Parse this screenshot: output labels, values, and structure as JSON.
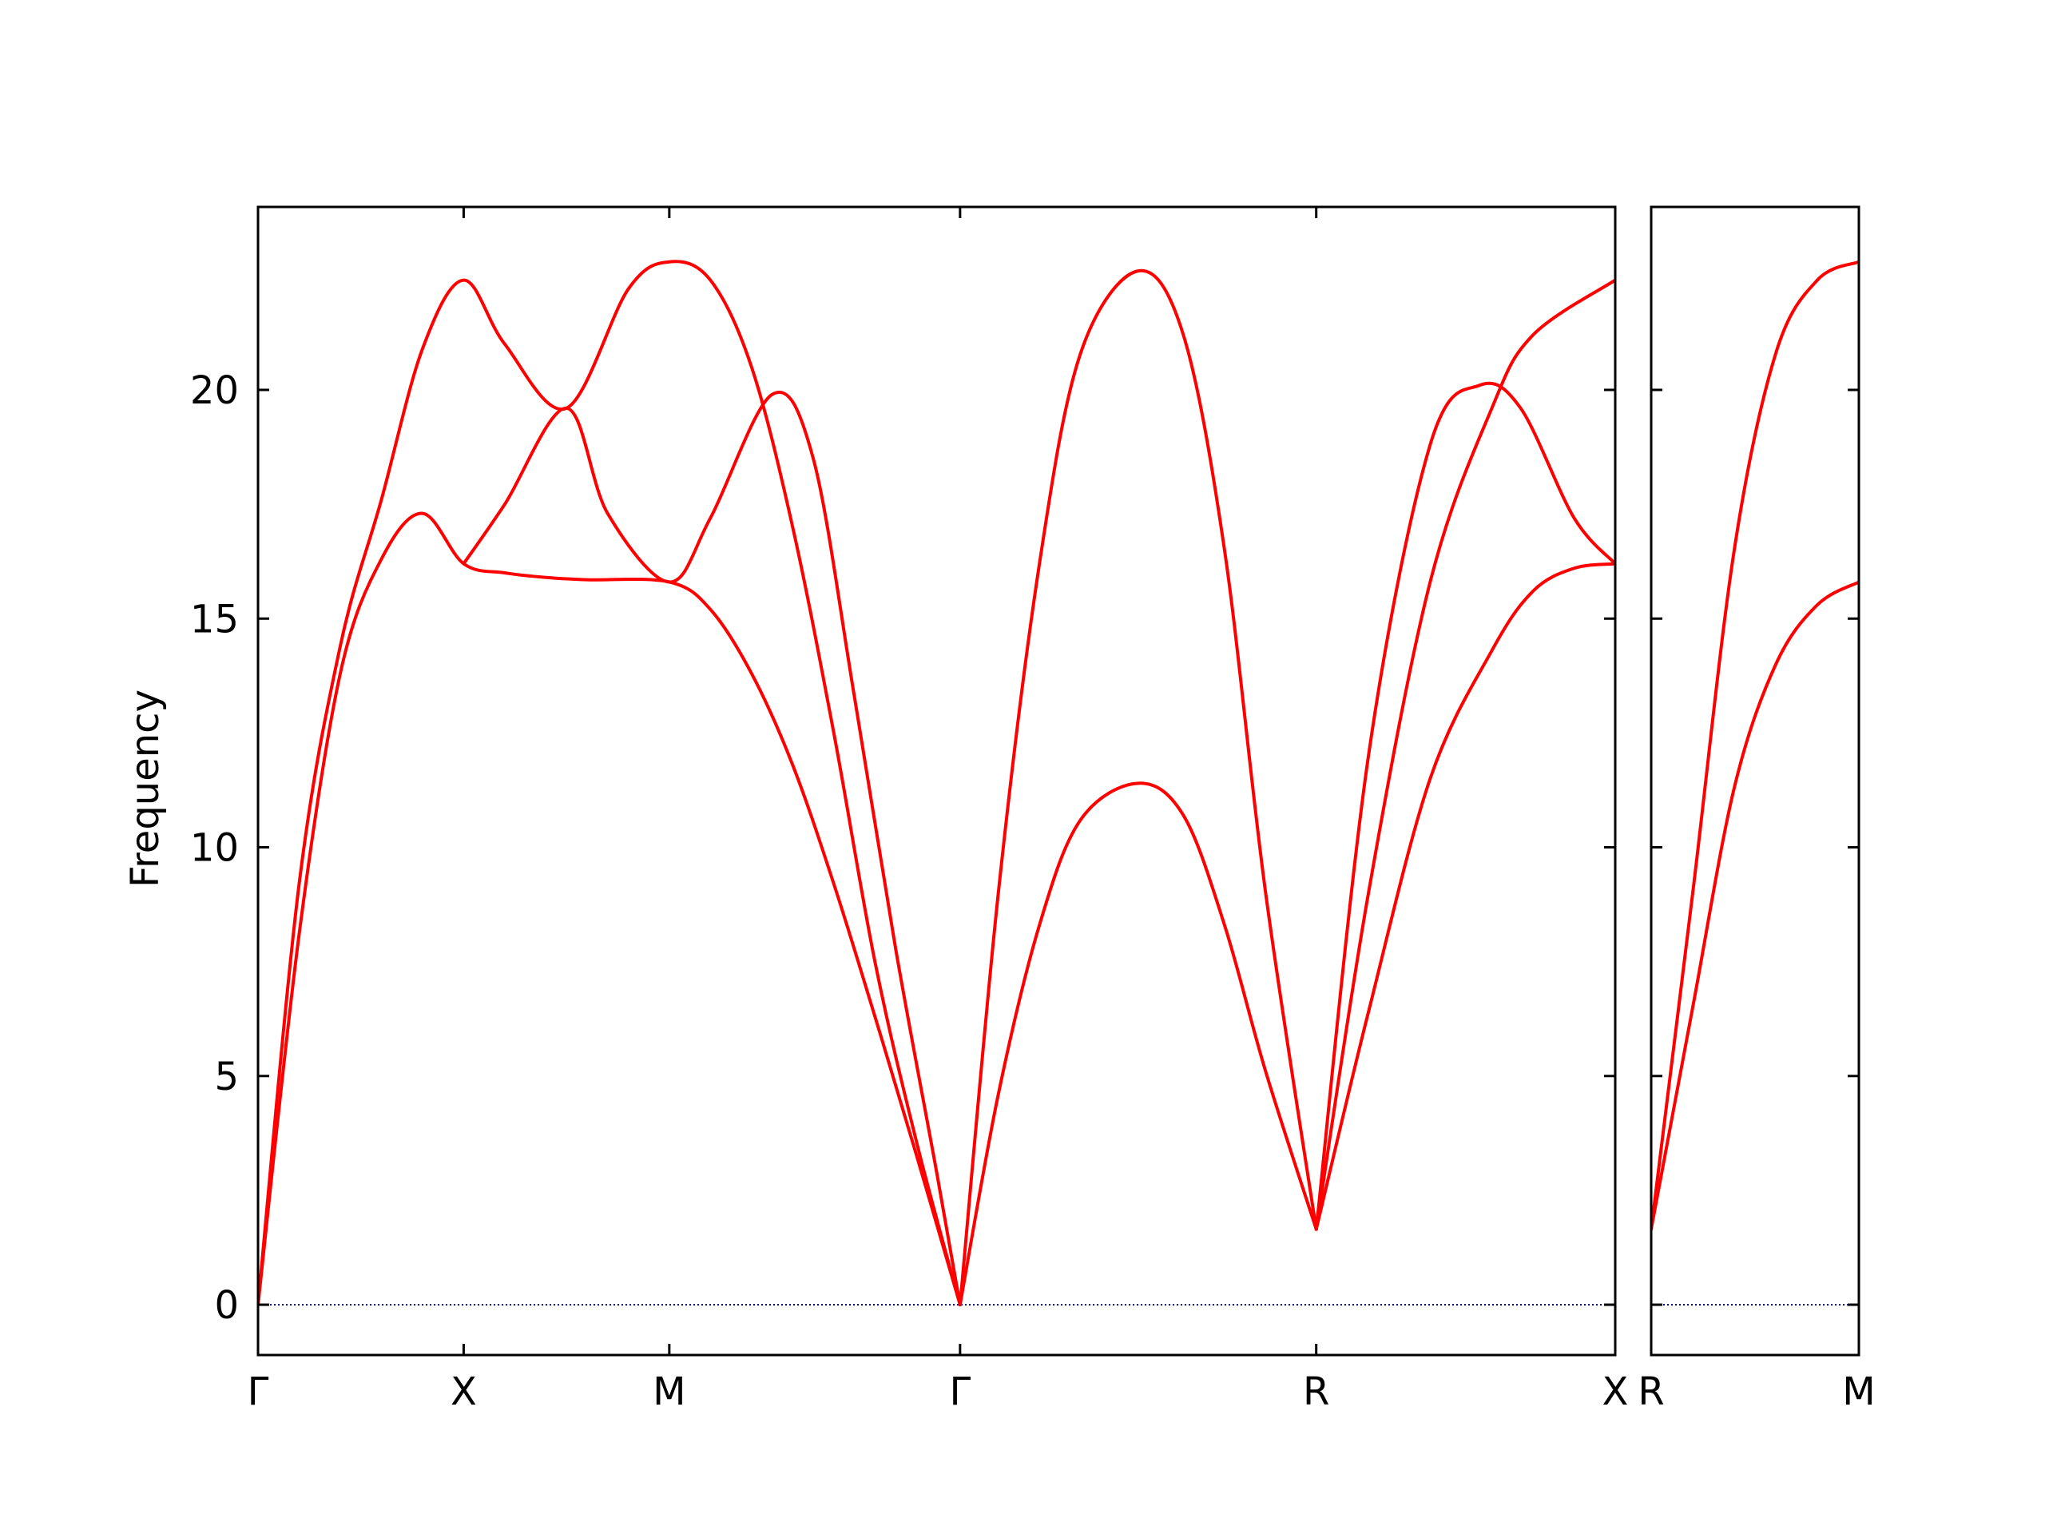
{
  "colors": {
    "band": "#ff0000",
    "zero_line": "#00008b",
    "axes": "#000000",
    "background": "#ffffff"
  },
  "chart_data": {
    "type": "line",
    "title": "",
    "ylabel": "Frequency",
    "xlabel": "",
    "ylim": [
      -1.1,
      24.0
    ],
    "yticks": [
      0,
      5,
      10,
      15,
      20
    ],
    "grid": false,
    "legend": "none",
    "zero_line": {
      "y": 0,
      "style": "dotted"
    },
    "panels": [
      {
        "xlim": [
          0,
          3.3
        ],
        "labels": [
          {
            "x": 0.0,
            "text": "Γ"
          },
          {
            "x": 0.5,
            "text": "X"
          },
          {
            "x": 1.0,
            "text": "M"
          },
          {
            "x": 1.707,
            "text": "Γ"
          },
          {
            "x": 2.573,
            "text": "R"
          },
          {
            "x": 3.3,
            "text": "X"
          }
        ],
        "series": [
          {
            "values": [
              [
                0,
                0
              ],
              [
                0.1,
                8.1
              ],
              [
                0.2,
                13.8
              ],
              [
                0.3,
                16.3
              ],
              [
                0.4,
                17.3
              ],
              [
                0.5,
                16.2
              ],
              [
                0.6,
                16.0
              ],
              [
                0.7,
                15.9
              ],
              [
                0.8,
                15.85
              ],
              [
                1.0,
                15.8
              ],
              [
                1.1,
                15.2
              ],
              [
                1.2,
                13.8
              ],
              [
                1.3,
                11.8
              ],
              [
                1.4,
                9.2
              ],
              [
                1.5,
                6.3
              ],
              [
                1.6,
                3.3
              ],
              [
                1.707,
                0
              ]
            ]
          },
          {
            "values": [
              [
                0,
                0
              ],
              [
                0.1,
                9.2
              ],
              [
                0.2,
                14.4
              ],
              [
                0.3,
                17.6
              ],
              [
                0.4,
                20.9
              ],
              [
                0.5,
                22.4
              ],
              [
                0.6,
                21.0
              ],
              [
                0.75,
                19.6
              ],
              [
                0.9,
                22.2
              ],
              [
                1.0,
                22.8
              ],
              [
                1.1,
                22.4
              ],
              [
                1.2,
                20.5
              ],
              [
                1.3,
                17.0
              ],
              [
                1.4,
                12.5
              ],
              [
                1.5,
                7.5
              ],
              [
                1.6,
                3.6
              ],
              [
                1.707,
                0
              ]
            ]
          },
          {
            "values": [
              [
                0.5,
                16.2
              ],
              [
                0.6,
                17.5
              ],
              [
                0.75,
                19.6
              ],
              [
                0.85,
                17.3
              ],
              [
                1.0,
                15.8
              ],
              [
                1.1,
                17.2
              ],
              [
                1.25,
                19.9
              ],
              [
                1.35,
                18.5
              ],
              [
                1.45,
                13.3
              ],
              [
                1.55,
                7.8
              ],
              [
                1.65,
                2.9
              ],
              [
                1.707,
                0
              ]
            ]
          },
          {
            "values": [
              [
                1.707,
                0
              ],
              [
                1.8,
                4.6
              ],
              [
                1.9,
                8.3
              ],
              [
                2.0,
                10.6
              ],
              [
                2.14,
                11.4
              ],
              [
                2.25,
                10.7
              ],
              [
                2.35,
                8.3
              ],
              [
                2.45,
                5.1
              ],
              [
                2.573,
                1.65
              ]
            ]
          },
          {
            "values": [
              [
                1.707,
                0
              ],
              [
                1.8,
                9.0
              ],
              [
                1.9,
                16.2
              ],
              [
                2.0,
                20.8
              ],
              [
                2.14,
                22.6
              ],
              [
                2.25,
                21.2
              ],
              [
                2.35,
                16.5
              ],
              [
                2.45,
                9.0
              ],
              [
                2.573,
                1.65
              ]
            ]
          },
          {
            "values": [
              [
                2.573,
                1.65
              ],
              [
                2.7,
                9.0
              ],
              [
                2.85,
                15.8
              ],
              [
                3.0,
                19.6
              ],
              [
                3.1,
                21.2
              ],
              [
                3.3,
                22.4
              ]
            ]
          },
          {
            "values": [
              [
                2.573,
                1.65
              ],
              [
                2.7,
                12.0
              ],
              [
                2.85,
                18.8
              ],
              [
                2.97,
                20.1
              ],
              [
                3.07,
                19.6
              ],
              [
                3.2,
                17.2
              ],
              [
                3.3,
                16.2
              ]
            ]
          },
          {
            "values": [
              [
                2.573,
                1.65
              ],
              [
                2.7,
                6.4
              ],
              [
                2.85,
                11.5
              ],
              [
                3.0,
                14.3
              ],
              [
                3.1,
                15.6
              ],
              [
                3.2,
                16.1
              ],
              [
                3.3,
                16.2
              ]
            ]
          }
        ]
      },
      {
        "xlim": [
          0,
          0.5
        ],
        "labels": [
          {
            "x": 0.0,
            "text": "R"
          },
          {
            "x": 0.5,
            "text": "M"
          }
        ],
        "series": [
          {
            "values": [
              [
                0,
                1.65
              ],
              [
                0.1,
                9.0
              ],
              [
                0.2,
                16.5
              ],
              [
                0.3,
                20.8
              ],
              [
                0.4,
                22.4
              ],
              [
                0.5,
                22.8
              ]
            ]
          },
          {
            "values": [
              [
                0,
                1.65
              ],
              [
                0.1,
                6.5
              ],
              [
                0.2,
                11.3
              ],
              [
                0.3,
                14.0
              ],
              [
                0.4,
                15.3
              ],
              [
                0.5,
                15.8
              ]
            ]
          }
        ]
      }
    ]
  }
}
